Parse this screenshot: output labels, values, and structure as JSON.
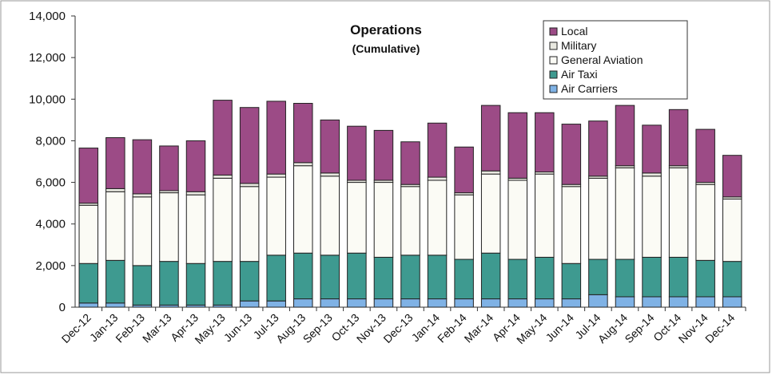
{
  "chart_data": {
    "type": "bar",
    "stacked": true,
    "title": "Operations",
    "subtitle": "(Cumulative)",
    "xlabel": "",
    "ylabel": "",
    "ylim": [
      0,
      14000
    ],
    "yticks": [
      "0",
      "2,000",
      "4,000",
      "6,000",
      "8,000",
      "10,000",
      "12,000",
      "14,000"
    ],
    "grid": false,
    "legend_position": "top-right",
    "categories": [
      "Dec-12",
      "Jan-13",
      "Feb-13",
      "Mar-13",
      "Apr-13",
      "May-13",
      "Jun-13",
      "Jul-13",
      "Aug-13",
      "Sep-13",
      "Oct-13",
      "Nov-13",
      "Dec-13",
      "Jan-14",
      "Feb-14",
      "Mar-14",
      "Apr-14",
      "May-14",
      "Jun-14",
      "Jul-14",
      "Aug-14",
      "Sep-14",
      "Oct-14",
      "Nov-14",
      "Dec-14"
    ],
    "series": [
      {
        "name": "Air Carriers",
        "color": "#7fb2e5",
        "values": [
          200,
          200,
          100,
          100,
          100,
          100,
          300,
          300,
          400,
          400,
          400,
          400,
          400,
          400,
          400,
          400,
          400,
          400,
          400,
          600,
          500,
          500,
          500,
          500,
          500
        ]
      },
      {
        "name": "Air Taxi",
        "color": "#3e9a90",
        "values": [
          1900,
          2050,
          1900,
          2100,
          2000,
          2100,
          1900,
          2200,
          2200,
          2100,
          2200,
          2000,
          2100,
          2100,
          1900,
          2200,
          1900,
          2000,
          1700,
          1700,
          1800,
          1900,
          1900,
          1750,
          1700
        ]
      },
      {
        "name": "General Aviation",
        "color": "#fbfbf5",
        "values": [
          2800,
          3300,
          3300,
          3300,
          3300,
          4000,
          3600,
          3750,
          4200,
          3800,
          3400,
          3600,
          3300,
          3600,
          3100,
          3800,
          3800,
          4000,
          3700,
          3900,
          4400,
          3900,
          4300,
          3650,
          3000
        ]
      },
      {
        "name": "Military",
        "color": "#e8e8e0",
        "values": [
          100,
          150,
          150,
          100,
          150,
          150,
          150,
          150,
          150,
          150,
          100,
          100,
          100,
          150,
          100,
          150,
          100,
          100,
          100,
          100,
          100,
          150,
          100,
          100,
          100
        ]
      },
      {
        "name": "Local",
        "color": "#9c4b86",
        "values": [
          2650,
          2450,
          2600,
          2150,
          2450,
          3600,
          3650,
          3500,
          2850,
          2550,
          2600,
          2400,
          2050,
          2600,
          2200,
          3150,
          3150,
          2850,
          2900,
          2650,
          2900,
          2300,
          2700,
          2550,
          2000
        ]
      }
    ]
  }
}
